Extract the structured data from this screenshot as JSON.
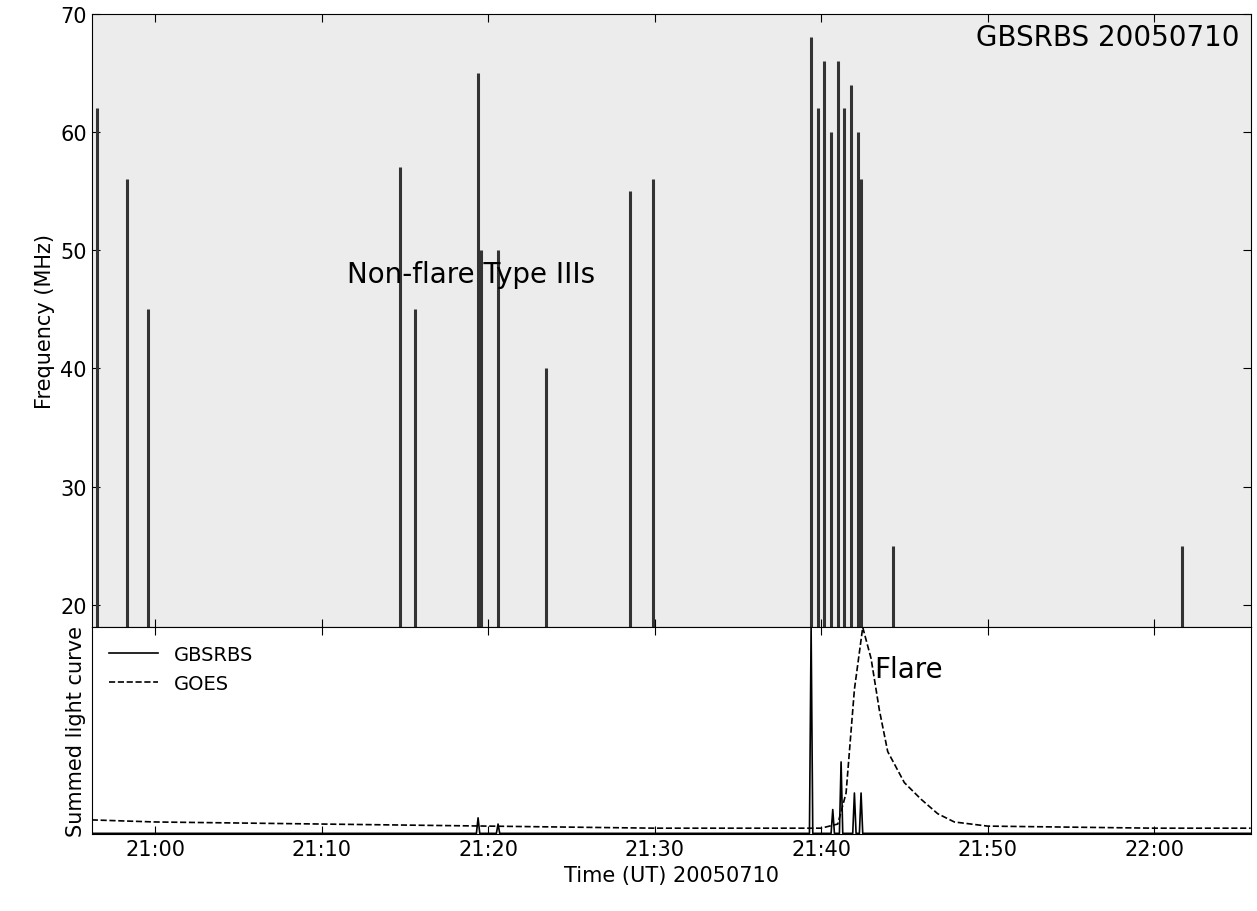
{
  "chart_data": [
    {
      "type": "spectrogram",
      "title": "GBSRBS 20050710",
      "annotation": {
        "text": "Non-flare Type IIIs",
        "x": 1271.5,
        "y": 48
      },
      "y_label": "Frequency (MHz)",
      "xlim": [
        1256.2,
        1325.8
      ],
      "xticks": [
        {
          "value": 1260,
          "label": "21:00"
        },
        {
          "value": 1270,
          "label": "21:10"
        },
        {
          "value": 1280,
          "label": "21:20"
        },
        {
          "value": 1290,
          "label": "21:30"
        },
        {
          "value": 1300,
          "label": "21:40"
        },
        {
          "value": 1310,
          "label": "21:50"
        },
        {
          "value": 1320,
          "label": "22:00"
        }
      ],
      "ylim": [
        18.1,
        70
      ],
      "yticks": [
        20,
        30,
        40,
        50,
        60,
        70
      ],
      "tick_labels": "y",
      "color": "#333333",
      "bursts": [
        {
          "time": 1256.5,
          "fmin": 18,
          "fmax": 62
        },
        {
          "time": 1258.3,
          "fmin": 18,
          "fmax": 56
        },
        {
          "time": 1259.6,
          "fmin": 18,
          "fmax": 45
        },
        {
          "time": 1274.7,
          "fmin": 18,
          "fmax": 57
        },
        {
          "time": 1275.6,
          "fmin": 18,
          "fmax": 45
        },
        {
          "time": 1279.4,
          "fmin": 18,
          "fmax": 65
        },
        {
          "time": 1279.6,
          "fmin": 18,
          "fmax": 50
        },
        {
          "time": 1280.6,
          "fmin": 18,
          "fmax": 50
        },
        {
          "time": 1283.5,
          "fmin": 18,
          "fmax": 40
        },
        {
          "time": 1288.5,
          "fmin": 18,
          "fmax": 55
        },
        {
          "time": 1289.9,
          "fmin": 18,
          "fmax": 56
        },
        {
          "time": 1299.4,
          "fmin": 18,
          "fmax": 68
        },
        {
          "time": 1299.8,
          "fmin": 18,
          "fmax": 62
        },
        {
          "time": 1300.2,
          "fmin": 18,
          "fmax": 66
        },
        {
          "time": 1300.6,
          "fmin": 18,
          "fmax": 60
        },
        {
          "time": 1301.0,
          "fmin": 18,
          "fmax": 66
        },
        {
          "time": 1301.4,
          "fmin": 18,
          "fmax": 62
        },
        {
          "time": 1301.8,
          "fmin": 18,
          "fmax": 64
        },
        {
          "time": 1302.2,
          "fmin": 18,
          "fmax": 60
        },
        {
          "time": 1302.4,
          "fmin": 18,
          "fmax": 56
        },
        {
          "time": 1304.3,
          "fmin": 18,
          "fmax": 25
        },
        {
          "time": 1321.7,
          "fmin": 18,
          "fmax": 25
        }
      ]
    },
    {
      "type": "line",
      "x_label": "Time (UT) 20050710",
      "y_label": "Summed light curve",
      "annotation": {
        "text": "Flare",
        "x": 1303.2,
        "y": 0.8
      },
      "xlim": [
        1256.2,
        1325.8
      ],
      "xticks": [
        {
          "value": 1260,
          "label": "21:00"
        },
        {
          "value": 1270,
          "label": "21:10"
        },
        {
          "value": 1280,
          "label": "21:20"
        },
        {
          "value": 1290,
          "label": "21:30"
        },
        {
          "value": 1300,
          "label": "21:40"
        },
        {
          "value": 1310,
          "label": "21:50"
        },
        {
          "value": 1320,
          "label": "22:00"
        }
      ],
      "ylim": [
        0,
        1
      ],
      "yticks": [],
      "tick_labels": "x",
      "legend": "upper left",
      "series": [
        {
          "name": "GBSRBS",
          "color": "#000000",
          "line_style": "solid",
          "x": [
            1256.2,
            1279.3,
            1279.4,
            1279.5,
            1280.5,
            1280.6,
            1280.7,
            1299.3,
            1299.4,
            1299.5,
            1300.6,
            1300.7,
            1300.8,
            1301.1,
            1301.2,
            1301.3,
            1301.9,
            1302.0,
            1302.1,
            1302.3,
            1302.4,
            1302.5,
            1325.8
          ],
          "values": [
            0.005,
            0.005,
            0.08,
            0.005,
            0.005,
            0.05,
            0.005,
            0.005,
            1.0,
            0.005,
            0.005,
            0.12,
            0.005,
            0.005,
            0.35,
            0.005,
            0.005,
            0.2,
            0.005,
            0.005,
            0.2,
            0.005,
            0.005
          ]
        },
        {
          "name": "GOES",
          "color": "#000000",
          "line_style": "dashed",
          "x": [
            1256.2,
            1260,
            1270,
            1280,
            1290,
            1300,
            1301,
            1301.5,
            1302,
            1302.5,
            1303,
            1303.5,
            1304,
            1305,
            1306,
            1307,
            1308,
            1310,
            1320,
            1325.8
          ],
          "values": [
            0.07,
            0.06,
            0.05,
            0.04,
            0.03,
            0.03,
            0.05,
            0.2,
            0.7,
            1.0,
            0.85,
            0.6,
            0.4,
            0.25,
            0.17,
            0.1,
            0.06,
            0.04,
            0.03,
            0.03
          ]
        }
      ]
    }
  ]
}
